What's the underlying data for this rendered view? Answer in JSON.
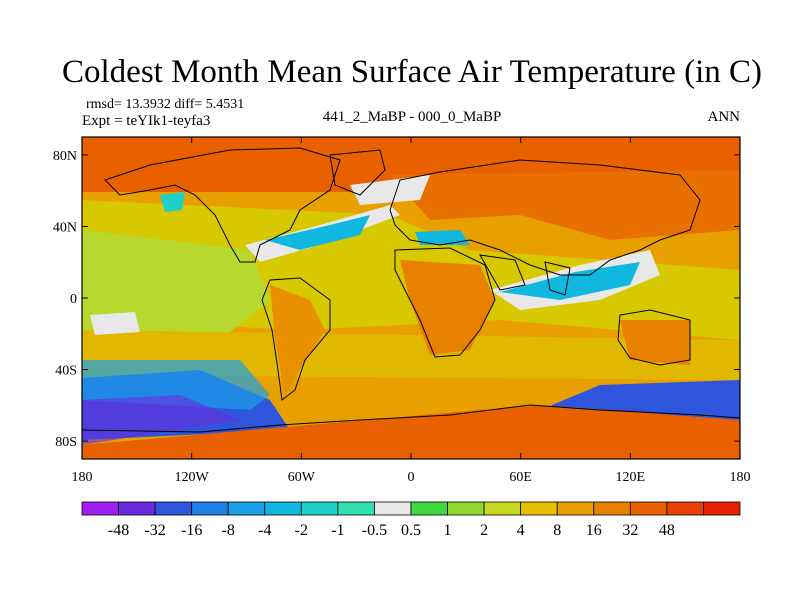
{
  "figure": {
    "title": "Coldest Month Mean Surface Air Temperature (in C)",
    "stats_line": "rmsd= 13.3932 diff= 5.4531",
    "experiment_line": "Expt = teYIk1-teyfa3",
    "center_label": "441_2_MaBP - 000_0_MaBP",
    "season": "ANN"
  },
  "map": {
    "projection": "cylindrical-equidistant",
    "lon_range": [
      -180,
      180
    ],
    "lat_range": [
      -90,
      90
    ],
    "lat_ticks": [
      {
        "value": 80,
        "label": "80N"
      },
      {
        "value": 40,
        "label": "40N"
      },
      {
        "value": 0,
        "label": "0"
      },
      {
        "value": -40,
        "label": "40S"
      },
      {
        "value": -80,
        "label": "80S"
      }
    ],
    "lon_ticks": [
      {
        "value": -180,
        "label": "180"
      },
      {
        "value": -120,
        "label": "120W"
      },
      {
        "value": -60,
        "label": "60W"
      },
      {
        "value": 0,
        "label": "0"
      },
      {
        "value": 60,
        "label": "60E"
      },
      {
        "value": 120,
        "label": "120E"
      },
      {
        "value": 180,
        "label": "180"
      }
    ]
  },
  "colorbar": {
    "orientation": "horizontal",
    "colors": [
      "#a020f0",
      "#6a2be0",
      "#2f55dc",
      "#1f80e6",
      "#1aa0e8",
      "#10b8e0",
      "#20d0c8",
      "#30e0b0",
      "#e8e8e8",
      "#40d840",
      "#90d830",
      "#c8d820",
      "#e8c000",
      "#e8a000",
      "#e88000",
      "#e86000",
      "#e84000",
      "#e82000"
    ],
    "labels": [
      "-48",
      "-32",
      "-16",
      "-8",
      "-4",
      "-2",
      "-1",
      "-0.5",
      "0.5",
      "1",
      "2",
      "4",
      "8",
      "16",
      "32",
      "48"
    ]
  }
}
